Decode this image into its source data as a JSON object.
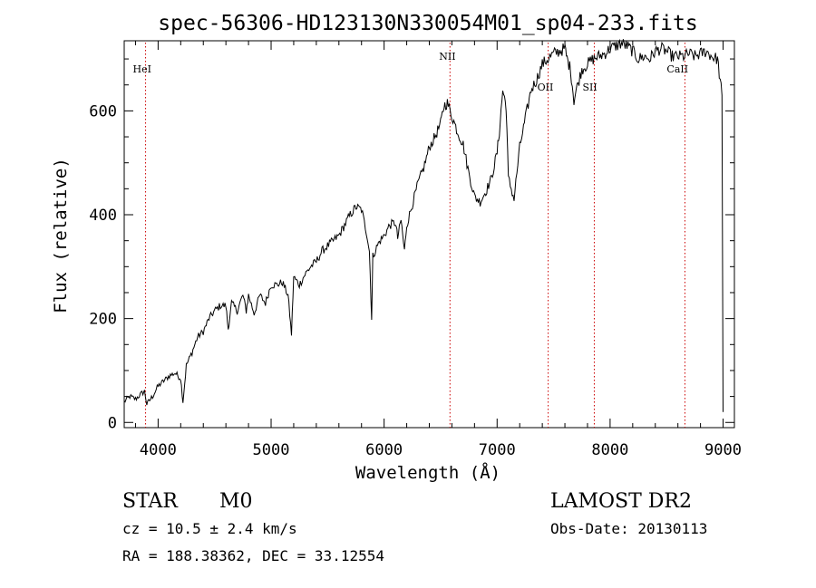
{
  "chart_data": {
    "type": "line",
    "title": "spec-56306-HD123130N330054M01_sp04-233.fits",
    "xlabel": "Wavelength (Å)",
    "ylabel": "Flux (relative)",
    "xlim": [
      3700,
      9100
    ],
    "ylim": [
      -10,
      735
    ],
    "x_ticks": [
      4000,
      5000,
      6000,
      7000,
      8000,
      9000
    ],
    "y_ticks": [
      0,
      200,
      400,
      600
    ],
    "grid": false,
    "series": [
      {
        "x": [
          3700,
          3750,
          3800,
          3850,
          3880,
          3900,
          3950,
          4000,
          4050,
          4100,
          4150,
          4200,
          4220,
          4250,
          4300,
          4350,
          4400,
          4450,
          4500,
          4550,
          4600,
          4620,
          4650,
          4700,
          4750,
          4780,
          4800,
          4850,
          4900,
          4950,
          5000,
          5050,
          5100,
          5150,
          5180,
          5200,
          5250,
          5300,
          5350,
          5400,
          5450,
          5500,
          5550,
          5600,
          5650,
          5700,
          5750,
          5800,
          5850,
          5870,
          5890,
          5900,
          5950,
          6000,
          6050,
          6100,
          6120,
          6150,
          6180,
          6200,
          6250,
          6300,
          6350,
          6400,
          6450,
          6500,
          6530,
          6560,
          6600,
          6650,
          6700,
          6750,
          6800,
          6850,
          6900,
          6950,
          7000,
          7020,
          7050,
          7080,
          7100,
          7150,
          7200,
          7250,
          7300,
          7350,
          7400,
          7450,
          7500,
          7550,
          7600,
          7620,
          7650,
          7680,
          7700,
          7750,
          7800,
          7850,
          7900,
          7950,
          8000,
          8050,
          8100,
          8150,
          8200,
          8250,
          8300,
          8350,
          8400,
          8450,
          8500,
          8550,
          8600,
          8650,
          8700,
          8750,
          8800,
          8850,
          8900,
          8950,
          8990,
          9000
        ],
        "values": [
          40,
          50,
          45,
          55,
          60,
          35,
          50,
          70,
          80,
          90,
          95,
          85,
          40,
          110,
          135,
          165,
          175,
          200,
          215,
          225,
          225,
          180,
          230,
          215,
          245,
          215,
          245,
          210,
          245,
          230,
          265,
          265,
          270,
          245,
          170,
          280,
          265,
          285,
          300,
          310,
          330,
          340,
          350,
          360,
          380,
          400,
          415,
          410,
          360,
          330,
          200,
          320,
          345,
          360,
          380,
          385,
          355,
          390,
          330,
          380,
          420,
          460,
          490,
          530,
          550,
          575,
          610,
          615,
          590,
          560,
          535,
          480,
          435,
          425,
          445,
          470,
          520,
          560,
          640,
          610,
          470,
          430,
          530,
          585,
          640,
          660,
          690,
          700,
          710,
          715,
          720,
          700,
          680,
          620,
          640,
          680,
          690,
          700,
          705,
          710,
          720,
          725,
          730,
          725,
          715,
          700,
          705,
          700,
          715,
          720,
          715,
          705,
          705,
          705,
          710,
          705,
          710,
          715,
          705,
          700,
          630,
          20
        ]
      }
    ],
    "line_markers": [
      {
        "label": "HeI",
        "x": 3889
      },
      {
        "label": "NII",
        "x": 6583
      },
      {
        "label": "OII",
        "x": 7452
      },
      {
        "label": "SII",
        "x": 7860
      },
      {
        "label": "CaII",
        "x": 8662
      }
    ]
  },
  "info": {
    "object_type": "STAR",
    "subclass": "M0",
    "survey": "LAMOST DR2",
    "cz": "cz = 10.5 ± 2.4 km/s",
    "obs_date": "Obs-Date: 20130113",
    "radec": "RA = 188.38362, DEC =  33.12554"
  }
}
